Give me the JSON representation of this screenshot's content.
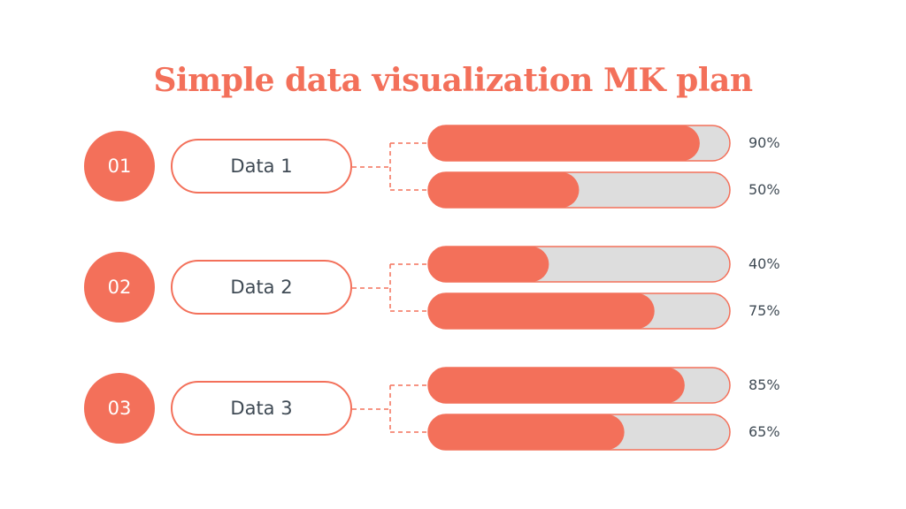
{
  "title": "Simple data visualization MK plan",
  "colors": {
    "accent": "#f3705a",
    "track": "#dddddd",
    "text": "#3f4a54"
  },
  "chart_data": {
    "type": "bar",
    "orientation": "horizontal",
    "xlim": [
      0,
      100
    ],
    "groups": [
      {
        "number": "01",
        "label": "Data 1",
        "values": [
          90,
          50
        ],
        "value_labels": [
          "90%",
          "50%"
        ]
      },
      {
        "number": "02",
        "label": "Data 2",
        "values": [
          40,
          75
        ],
        "value_labels": [
          "40%",
          "75%"
        ]
      },
      {
        "number": "03",
        "label": "Data 3",
        "values": [
          85,
          65
        ],
        "value_labels": [
          "85%",
          "65%"
        ]
      }
    ]
  }
}
